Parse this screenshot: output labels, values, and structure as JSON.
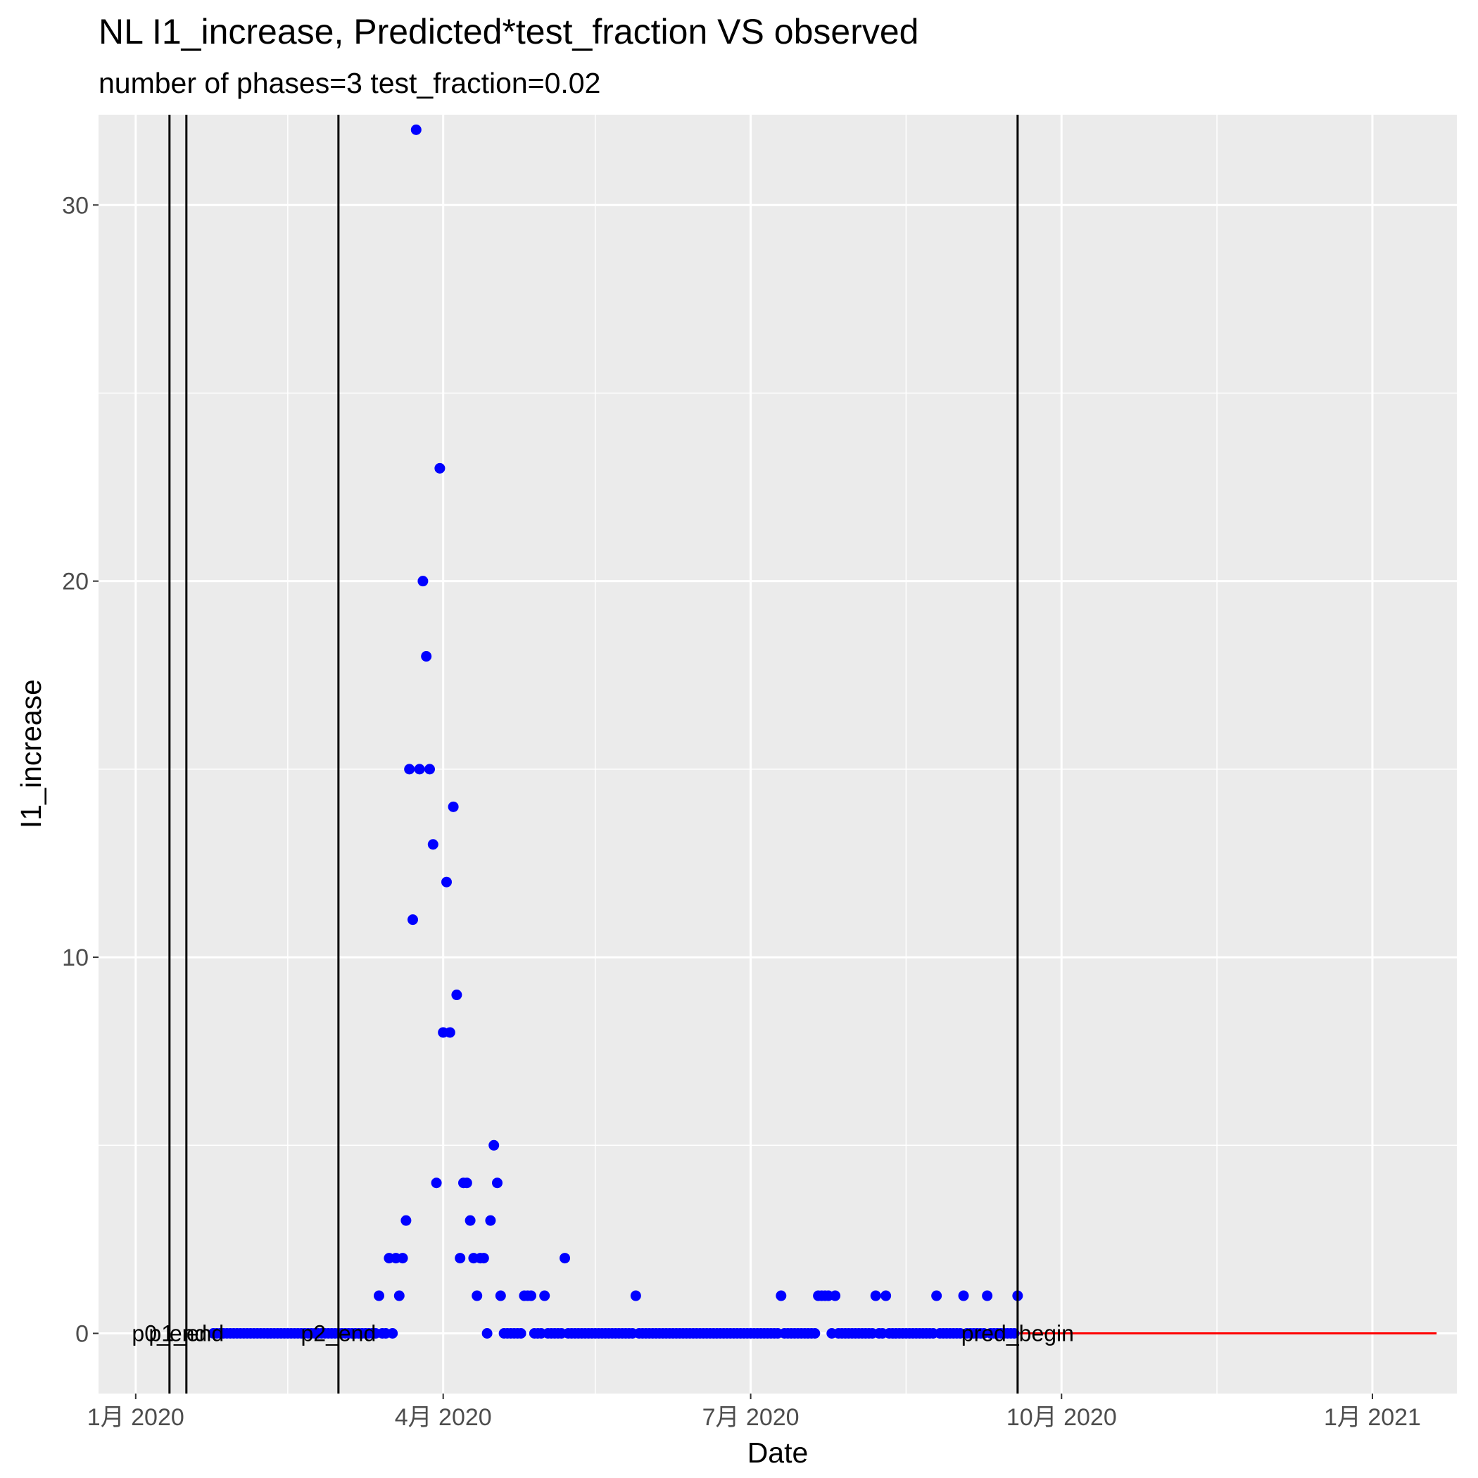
{
  "chart_data": {
    "type": "scatter",
    "title": "NL I1_increase, Predicted*test_fraction VS observed",
    "subtitle": "number of phases=3   test_fraction=0.02",
    "xlabel": "Date",
    "ylabel": "I1_increase",
    "xlim": [
      "2019-12-21",
      "2021-01-26"
    ],
    "ylim": [
      -1.6,
      32.4
    ],
    "x_ticks": [
      {
        "date": "2020-01-01",
        "label": "1月 2020"
      },
      {
        "date": "2020-04-01",
        "label": "4月 2020"
      },
      {
        "date": "2020-07-01",
        "label": "7月 2020"
      },
      {
        "date": "2020-10-01",
        "label": "10月 2020"
      },
      {
        "date": "2021-01-01",
        "label": "1月 2021"
      }
    ],
    "x_minor_ticks": [
      "2020-02-15",
      "2020-05-16",
      "2020-08-16",
      "2020-11-16"
    ],
    "y_ticks": [
      0,
      10,
      20,
      30
    ],
    "y_minor_ticks": [
      5,
      15,
      25
    ],
    "grid": true,
    "colors": {
      "panel": "#ebebeb",
      "grid": "#ffffff",
      "observed": "#0000ff",
      "predicted": "#ff0000",
      "vline": "#000000"
    },
    "vlines": [
      {
        "date": "2020-01-11",
        "label": "p0_end"
      },
      {
        "date": "2020-01-16",
        "label": "p1_end"
      },
      {
        "date": "2020-03-01",
        "label": "p2_end"
      },
      {
        "date": "2020-09-18",
        "label": "pred_begin"
      }
    ],
    "series": [
      {
        "type": "scatter",
        "points": [
          [
            "2020-03-13",
            1
          ],
          [
            "2020-03-16",
            2
          ],
          [
            "2020-03-18",
            2
          ],
          [
            "2020-03-19",
            1
          ],
          [
            "2020-03-20",
            2
          ],
          [
            "2020-03-21",
            3
          ],
          [
            "2020-03-22",
            15
          ],
          [
            "2020-03-23",
            11
          ],
          [
            "2020-03-24",
            32
          ],
          [
            "2020-03-25",
            15
          ],
          [
            "2020-03-26",
            20
          ],
          [
            "2020-03-27",
            18
          ],
          [
            "2020-03-28",
            15
          ],
          [
            "2020-03-29",
            13
          ],
          [
            "2020-03-30",
            4
          ],
          [
            "2020-03-31",
            23
          ],
          [
            "2020-04-01",
            8
          ],
          [
            "2020-04-02",
            12
          ],
          [
            "2020-04-03",
            8
          ],
          [
            "2020-04-04",
            14
          ],
          [
            "2020-04-05",
            9
          ],
          [
            "2020-04-06",
            2
          ],
          [
            "2020-04-07",
            4
          ],
          [
            "2020-04-08",
            4
          ],
          [
            "2020-04-09",
            3
          ],
          [
            "2020-04-10",
            2
          ],
          [
            "2020-04-11",
            1
          ],
          [
            "2020-04-12",
            2
          ],
          [
            "2020-04-13",
            2
          ],
          [
            "2020-04-14",
            0
          ],
          [
            "2020-04-15",
            3
          ],
          [
            "2020-04-16",
            5
          ],
          [
            "2020-04-17",
            4
          ],
          [
            "2020-04-18",
            1
          ],
          [
            "2020-04-19",
            0
          ],
          [
            "2020-04-25",
            1
          ],
          [
            "2020-04-26",
            1
          ],
          [
            "2020-04-27",
            1
          ],
          [
            "2020-05-01",
            1
          ],
          [
            "2020-05-07",
            2
          ],
          [
            "2020-05-28",
            1
          ],
          [
            "2020-07-10",
            1
          ],
          [
            "2020-07-21",
            1
          ],
          [
            "2020-07-22",
            1
          ],
          [
            "2020-07-23",
            1
          ],
          [
            "2020-07-24",
            1
          ],
          [
            "2020-07-26",
            1
          ],
          [
            "2020-08-07",
            1
          ],
          [
            "2020-08-10",
            1
          ],
          [
            "2020-08-25",
            1
          ],
          [
            "2020-09-02",
            1
          ],
          [
            "2020-09-09",
            1
          ],
          [
            "2020-09-18",
            1
          ]
        ],
        "zero_days": {
          "from": "2020-01-24",
          "to": "2020-09-18"
        }
      },
      {
        "type": "line",
        "points": [
          [
            "2020-09-18",
            0
          ],
          [
            "2021-01-20",
            0
          ]
        ]
      }
    ]
  }
}
